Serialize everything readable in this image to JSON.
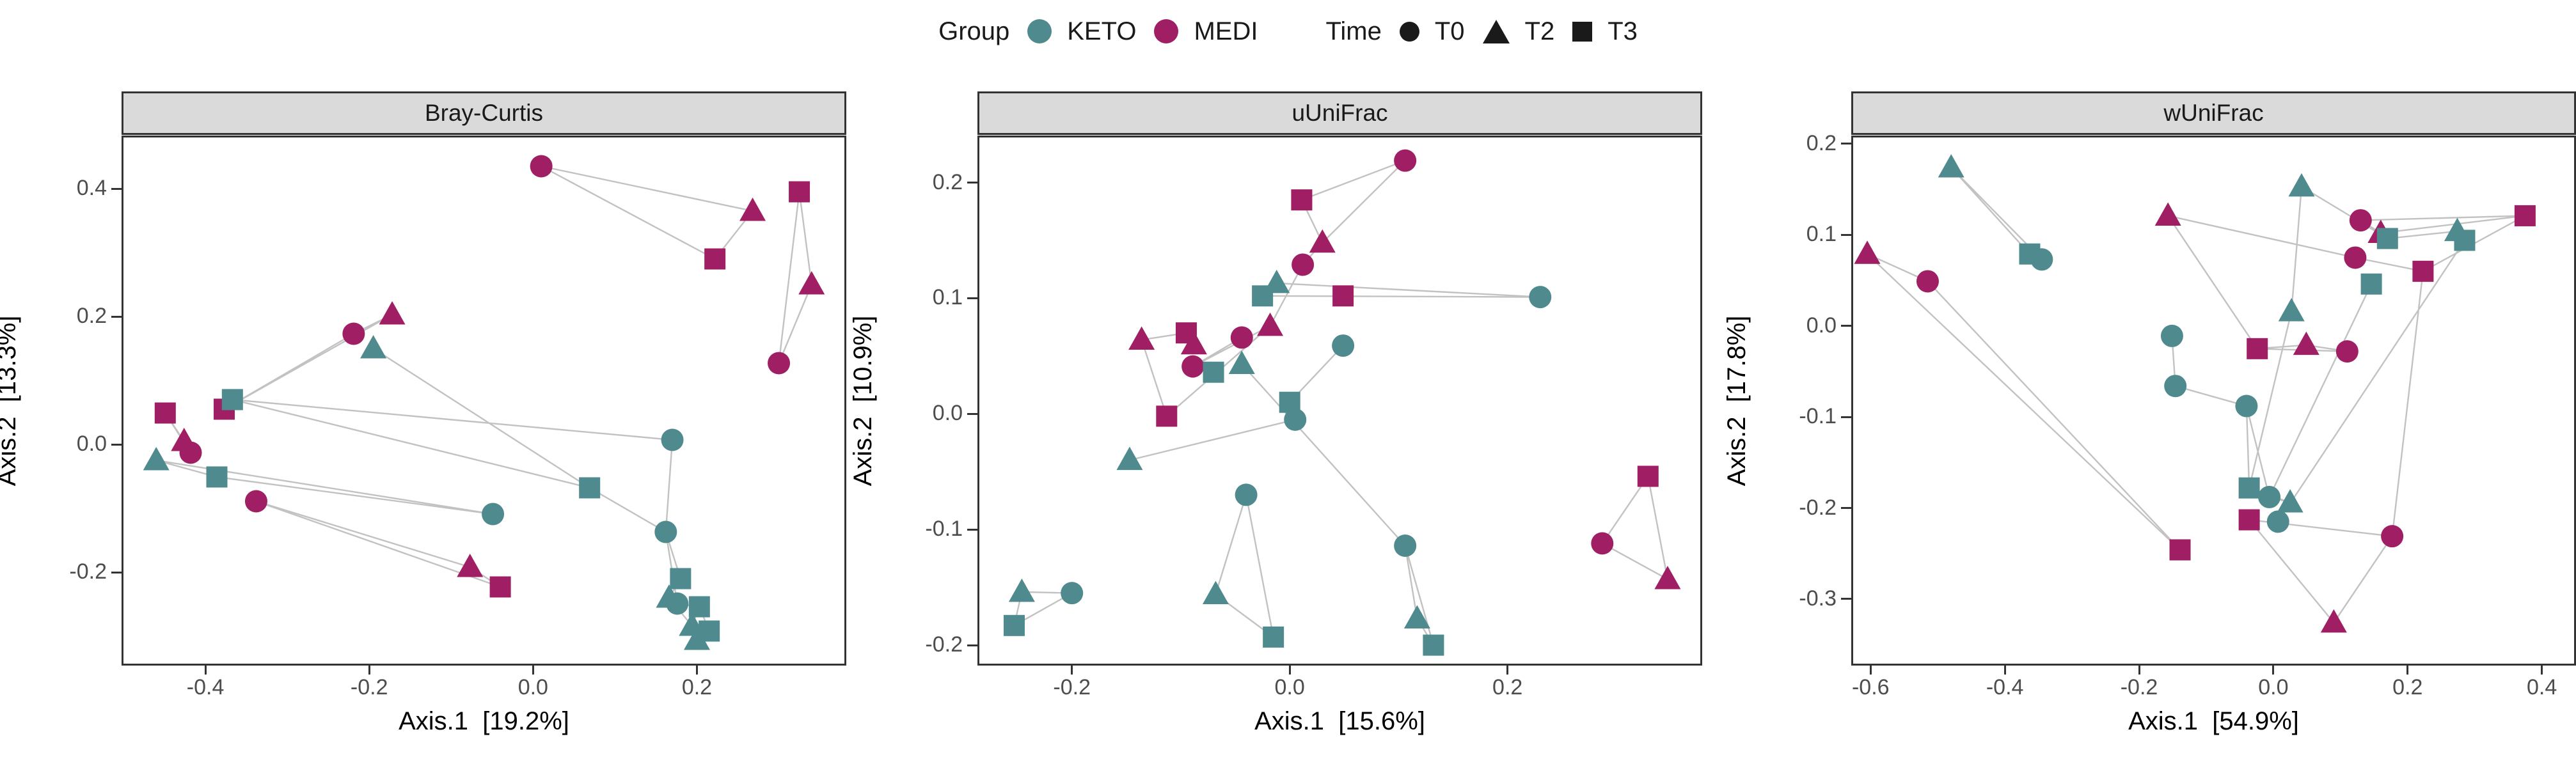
{
  "legend": {
    "group_label": "Group",
    "group_items": [
      {
        "label": "KETO",
        "color": "#4E8A8E"
      },
      {
        "label": "MEDI",
        "color": "#A01E63"
      }
    ],
    "time_label": "Time",
    "time_items": [
      {
        "label": "T0",
        "shape": "circle"
      },
      {
        "label": "T2",
        "shape": "triangle"
      },
      {
        "label": "T3",
        "shape": "square"
      }
    ]
  },
  "colors": {
    "KETO": "#4E8A8E",
    "MEDI": "#A01E63",
    "line": "#c2c2c2",
    "panel_border": "#333333",
    "strip_bg": "#DADADA",
    "tick_text": "#4d4d4d"
  },
  "chart_data": [
    {
      "type": "scatter",
      "title": "Bray-Curtis",
      "xlabel": "Axis.1  [19.2%]",
      "ylabel": "Axis.2  [13.3%]",
      "xlim": [
        -0.5,
        0.38
      ],
      "ylim": [
        -0.343,
        0.48
      ],
      "grid": false,
      "legend_position": "top",
      "xticks": {
        "values": [
          -0.4,
          -0.2,
          0.0,
          0.2
        ],
        "labels": [
          "-0.4",
          "-0.2",
          "0.0",
          "0.2"
        ]
      },
      "yticks": {
        "values": [
          -0.2,
          0.0,
          0.2,
          0.4
        ],
        "labels": [
          "-0.2",
          "0.0",
          "0.2",
          "0.4"
        ]
      },
      "points": [
        {
          "group": "MEDI",
          "time": "T0",
          "x": 0.01,
          "y": 0.435
        },
        {
          "group": "MEDI",
          "time": "T2",
          "x": 0.268,
          "y": 0.365
        },
        {
          "group": "MEDI",
          "time": "T3",
          "x": 0.222,
          "y": 0.29
        },
        {
          "group": "MEDI",
          "time": "T3",
          "x": 0.325,
          "y": 0.395
        },
        {
          "group": "MEDI",
          "time": "T2",
          "x": 0.34,
          "y": 0.25
        },
        {
          "group": "MEDI",
          "time": "T0",
          "x": 0.3,
          "y": 0.127
        },
        {
          "group": "MEDI",
          "time": "T2",
          "x": -0.172,
          "y": 0.203
        },
        {
          "group": "MEDI",
          "time": "T0",
          "x": -0.219,
          "y": 0.173
        },
        {
          "group": "MEDI",
          "time": "T3",
          "x": -0.377,
          "y": 0.055
        },
        {
          "group": "MEDI",
          "time": "T3",
          "x": -0.449,
          "y": 0.049
        },
        {
          "group": "MEDI",
          "time": "T2",
          "x": -0.426,
          "y": 0.005
        },
        {
          "group": "MEDI",
          "time": "T0",
          "x": -0.418,
          "y": -0.013
        },
        {
          "group": "MEDI",
          "time": "T0",
          "x": -0.338,
          "y": -0.089
        },
        {
          "group": "MEDI",
          "time": "T2",
          "x": -0.077,
          "y": -0.192
        },
        {
          "group": "MEDI",
          "time": "T3",
          "x": -0.04,
          "y": -0.223
        },
        {
          "group": "KETO",
          "time": "T3",
          "x": -0.367,
          "y": 0.07
        },
        {
          "group": "KETO",
          "time": "T2",
          "x": -0.195,
          "y": 0.15
        },
        {
          "group": "KETO",
          "time": "T2",
          "x": -0.46,
          "y": -0.025
        },
        {
          "group": "KETO",
          "time": "T3",
          "x": -0.386,
          "y": -0.051
        },
        {
          "group": "KETO",
          "time": "T0",
          "x": -0.049,
          "y": -0.109
        },
        {
          "group": "KETO",
          "time": "T3",
          "x": 0.069,
          "y": -0.068
        },
        {
          "group": "KETO",
          "time": "T0",
          "x": 0.17,
          "y": 0.007
        },
        {
          "group": "KETO",
          "time": "T0",
          "x": 0.162,
          "y": -0.137
        },
        {
          "group": "KETO",
          "time": "T3",
          "x": 0.18,
          "y": -0.21
        },
        {
          "group": "KETO",
          "time": "T2",
          "x": 0.166,
          "y": -0.24
        },
        {
          "group": "KETO",
          "time": "T0",
          "x": 0.176,
          "y": -0.249
        },
        {
          "group": "KETO",
          "time": "T3",
          "x": 0.203,
          "y": -0.254
        },
        {
          "group": "KETO",
          "time": "T2",
          "x": 0.194,
          "y": -0.284
        },
        {
          "group": "KETO",
          "time": "T3",
          "x": 0.215,
          "y": -0.292
        },
        {
          "group": "KETO",
          "time": "T2",
          "x": 0.2,
          "y": -0.306
        }
      ],
      "segments": [
        [
          0,
          1
        ],
        [
          0,
          2
        ],
        [
          1,
          2
        ],
        [
          3,
          5
        ],
        [
          4,
          5
        ],
        [
          3,
          4
        ],
        [
          6,
          7
        ],
        [
          6,
          8
        ],
        [
          7,
          8
        ],
        [
          9,
          10
        ],
        [
          9,
          11
        ],
        [
          10,
          11
        ],
        [
          12,
          13
        ],
        [
          12,
          14
        ],
        [
          13,
          14
        ],
        [
          17,
          18
        ],
        [
          17,
          19
        ],
        [
          18,
          19
        ],
        [
          15,
          20
        ],
        [
          15,
          21
        ],
        [
          16,
          20
        ],
        [
          20,
          22
        ],
        [
          21,
          22
        ],
        [
          22,
          23
        ],
        [
          22,
          25
        ],
        [
          23,
          24
        ],
        [
          25,
          26
        ],
        [
          24,
          27
        ],
        [
          26,
          27
        ],
        [
          26,
          28
        ],
        [
          27,
          29
        ],
        [
          28,
          29
        ]
      ]
    },
    {
      "type": "scatter",
      "title": "uUniFrac",
      "xlabel": "Axis.1  [15.6%]",
      "ylabel": "Axis.2  [10.9%]",
      "xlim": [
        -0.285,
        0.377
      ],
      "ylim": [
        -0.216,
        0.239
      ],
      "grid": false,
      "legend_position": "top",
      "xticks": {
        "values": [
          -0.2,
          0.0,
          0.2
        ],
        "labels": [
          "-0.2",
          "0.0",
          "0.2"
        ]
      },
      "yticks": {
        "values": [
          -0.2,
          -0.1,
          0.0,
          0.1,
          0.2
        ],
        "labels": [
          "-0.2",
          "-0.1",
          "0.0",
          "0.1",
          "0.2"
        ]
      },
      "points": [
        {
          "group": "MEDI",
          "time": "T0",
          "x": 0.106,
          "y": 0.219
        },
        {
          "group": "MEDI",
          "time": "T3",
          "x": 0.011,
          "y": 0.185
        },
        {
          "group": "MEDI",
          "time": "T2",
          "x": 0.03,
          "y": 0.148
        },
        {
          "group": "MEDI",
          "time": "T0",
          "x": 0.012,
          "y": 0.129
        },
        {
          "group": "MEDI",
          "time": "T3",
          "x": 0.049,
          "y": 0.102
        },
        {
          "group": "MEDI",
          "time": "T2",
          "x": -0.018,
          "y": 0.076
        },
        {
          "group": "MEDI",
          "time": "T0",
          "x": -0.044,
          "y": 0.066
        },
        {
          "group": "MEDI",
          "time": "T2",
          "x": -0.088,
          "y": 0.06
        },
        {
          "group": "MEDI",
          "time": "T2",
          "x": -0.136,
          "y": 0.064
        },
        {
          "group": "MEDI",
          "time": "T0",
          "x": -0.089,
          "y": 0.041
        },
        {
          "group": "MEDI",
          "time": "T3",
          "x": -0.095,
          "y": 0.07
        },
        {
          "group": "MEDI",
          "time": "T3",
          "x": -0.113,
          "y": -0.002
        },
        {
          "group": "MEDI",
          "time": "T3",
          "x": 0.329,
          "y": -0.054
        },
        {
          "group": "MEDI",
          "time": "T0",
          "x": 0.287,
          "y": -0.112
        },
        {
          "group": "MEDI",
          "time": "T2",
          "x": 0.347,
          "y": -0.143
        },
        {
          "group": "KETO",
          "time": "T2",
          "x": -0.012,
          "y": 0.113
        },
        {
          "group": "KETO",
          "time": "T3",
          "x": -0.025,
          "y": 0.102
        },
        {
          "group": "KETO",
          "time": "T0",
          "x": 0.23,
          "y": 0.101
        },
        {
          "group": "KETO",
          "time": "T0",
          "x": 0.049,
          "y": 0.059
        },
        {
          "group": "KETO",
          "time": "T2",
          "x": -0.044,
          "y": 0.043
        },
        {
          "group": "KETO",
          "time": "T3",
          "x": -0.07,
          "y": 0.036
        },
        {
          "group": "KETO",
          "time": "T3",
          "x": 0.0,
          "y": 0.01
        },
        {
          "group": "KETO",
          "time": "T0",
          "x": 0.005,
          "y": -0.005
        },
        {
          "group": "KETO",
          "time": "T2",
          "x": -0.147,
          "y": -0.04
        },
        {
          "group": "KETO",
          "time": "T0",
          "x": -0.04,
          "y": -0.07
        },
        {
          "group": "KETO",
          "time": "T2",
          "x": -0.068,
          "y": -0.156
        },
        {
          "group": "KETO",
          "time": "T3",
          "x": -0.015,
          "y": -0.193
        },
        {
          "group": "KETO",
          "time": "T2",
          "x": -0.246,
          "y": -0.154
        },
        {
          "group": "KETO",
          "time": "T0",
          "x": -0.2,
          "y": -0.155
        },
        {
          "group": "KETO",
          "time": "T3",
          "x": -0.253,
          "y": -0.183
        },
        {
          "group": "KETO",
          "time": "T0",
          "x": 0.106,
          "y": -0.114
        },
        {
          "group": "KETO",
          "time": "T2",
          "x": 0.117,
          "y": -0.177
        },
        {
          "group": "KETO",
          "time": "T3",
          "x": 0.132,
          "y": -0.2
        }
      ],
      "segments": [
        [
          0,
          1
        ],
        [
          0,
          2
        ],
        [
          1,
          2
        ],
        [
          2,
          3
        ],
        [
          3,
          5
        ],
        [
          5,
          9
        ],
        [
          6,
          9
        ],
        [
          7,
          10
        ],
        [
          8,
          11
        ],
        [
          5,
          11
        ],
        [
          8,
          10
        ],
        [
          12,
          13
        ],
        [
          12,
          14
        ],
        [
          13,
          14
        ],
        [
          15,
          17
        ],
        [
          16,
          17
        ],
        [
          18,
          21
        ],
        [
          21,
          22
        ],
        [
          22,
          23
        ],
        [
          24,
          25
        ],
        [
          24,
          26
        ],
        [
          25,
          26
        ],
        [
          27,
          28
        ],
        [
          27,
          29
        ],
        [
          28,
          29
        ],
        [
          30,
          31
        ],
        [
          30,
          32
        ],
        [
          31,
          32
        ],
        [
          19,
          30
        ]
      ]
    },
    {
      "type": "scatter",
      "title": "wUniFrac",
      "xlabel": "Axis.1  [54.9%]",
      "ylabel": "Axis.2  [17.8%]",
      "xlim": [
        -0.626,
        0.448
      ],
      "ylim": [
        -0.371,
        0.207
      ],
      "grid": false,
      "legend_position": "top",
      "xticks": {
        "values": [
          -0.6,
          -0.4,
          -0.2,
          0.0,
          0.2,
          0.4
        ],
        "labels": [
          "-0.6",
          "-0.4",
          "-0.2",
          "0.0",
          "0.2",
          "0.4"
        ]
      },
      "yticks": {
        "values": [
          -0.3,
          -0.2,
          -0.1,
          0.0,
          0.1,
          0.2
        ],
        "labels": [
          "-0.3",
          "-0.2",
          "-0.1",
          "0.0",
          "0.1",
          "0.2"
        ]
      },
      "points": [
        {
          "group": "KETO",
          "time": "T2",
          "x": -0.48,
          "y": 0.174
        },
        {
          "group": "MEDI",
          "time": "T2",
          "x": -0.605,
          "y": 0.079
        },
        {
          "group": "MEDI",
          "time": "T0",
          "x": -0.515,
          "y": 0.049
        },
        {
          "group": "KETO",
          "time": "T3",
          "x": -0.363,
          "y": 0.079
        },
        {
          "group": "KETO",
          "time": "T0",
          "x": -0.345,
          "y": 0.073
        },
        {
          "group": "MEDI",
          "time": "T2",
          "x": -0.157,
          "y": 0.121
        },
        {
          "group": "KETO",
          "time": "T2",
          "x": 0.042,
          "y": 0.153
        },
        {
          "group": "MEDI",
          "time": "T0",
          "x": 0.13,
          "y": 0.116
        },
        {
          "group": "MEDI",
          "time": "T2",
          "x": 0.16,
          "y": 0.102
        },
        {
          "group": "KETO",
          "time": "T3",
          "x": 0.17,
          "y": 0.096
        },
        {
          "group": "KETO",
          "time": "T2",
          "x": 0.274,
          "y": 0.104
        },
        {
          "group": "KETO",
          "time": "T3",
          "x": 0.285,
          "y": 0.094
        },
        {
          "group": "MEDI",
          "time": "T3",
          "x": 0.375,
          "y": 0.121
        },
        {
          "group": "MEDI",
          "time": "T0",
          "x": 0.122,
          "y": 0.075
        },
        {
          "group": "KETO",
          "time": "T3",
          "x": 0.146,
          "y": 0.046
        },
        {
          "group": "MEDI",
          "time": "T3",
          "x": 0.223,
          "y": 0.06
        },
        {
          "group": "KETO",
          "time": "T2",
          "x": 0.027,
          "y": 0.016
        },
        {
          "group": "KETO",
          "time": "T0",
          "x": -0.151,
          "y": -0.011
        },
        {
          "group": "MEDI",
          "time": "T3",
          "x": -0.024,
          "y": -0.025
        },
        {
          "group": "MEDI",
          "time": "T2",
          "x": 0.049,
          "y": -0.021
        },
        {
          "group": "MEDI",
          "time": "T0",
          "x": 0.11,
          "y": -0.028
        },
        {
          "group": "KETO",
          "time": "T0",
          "x": -0.146,
          "y": -0.066
        },
        {
          "group": "KETO",
          "time": "T0",
          "x": -0.04,
          "y": -0.088
        },
        {
          "group": "KETO",
          "time": "T3",
          "x": -0.036,
          "y": -0.178
        },
        {
          "group": "KETO",
          "time": "T0",
          "x": -0.006,
          "y": -0.188
        },
        {
          "group": "KETO",
          "time": "T2",
          "x": 0.025,
          "y": -0.194
        },
        {
          "group": "KETO",
          "time": "T0",
          "x": 0.007,
          "y": -0.215
        },
        {
          "group": "MEDI",
          "time": "T3",
          "x": -0.036,
          "y": -0.213
        },
        {
          "group": "MEDI",
          "time": "T0",
          "x": 0.177,
          "y": -0.231
        },
        {
          "group": "MEDI",
          "time": "T3",
          "x": -0.139,
          "y": -0.246
        },
        {
          "group": "MEDI",
          "time": "T2",
          "x": 0.09,
          "y": -0.326
        }
      ],
      "segments": [
        [
          0,
          3
        ],
        [
          0,
          4
        ],
        [
          3,
          4
        ],
        [
          1,
          2
        ],
        [
          1,
          29
        ],
        [
          2,
          29
        ],
        [
          5,
          13
        ],
        [
          5,
          18
        ],
        [
          7,
          8
        ],
        [
          7,
          12
        ],
        [
          8,
          12
        ],
        [
          15,
          12
        ],
        [
          13,
          15
        ],
        [
          18,
          19
        ],
        [
          18,
          20
        ],
        [
          19,
          20
        ],
        [
          27,
          28
        ],
        [
          27,
          30
        ],
        [
          28,
          30
        ],
        [
          6,
          9
        ],
        [
          6,
          16
        ],
        [
          10,
          11
        ],
        [
          9,
          10
        ],
        [
          17,
          21
        ],
        [
          21,
          22
        ],
        [
          22,
          23
        ],
        [
          22,
          24
        ],
        [
          23,
          25
        ],
        [
          24,
          25
        ],
        [
          14,
          24
        ],
        [
          15,
          28
        ],
        [
          11,
          26
        ],
        [
          16,
          23
        ],
        [
          26,
          25
        ]
      ]
    }
  ]
}
